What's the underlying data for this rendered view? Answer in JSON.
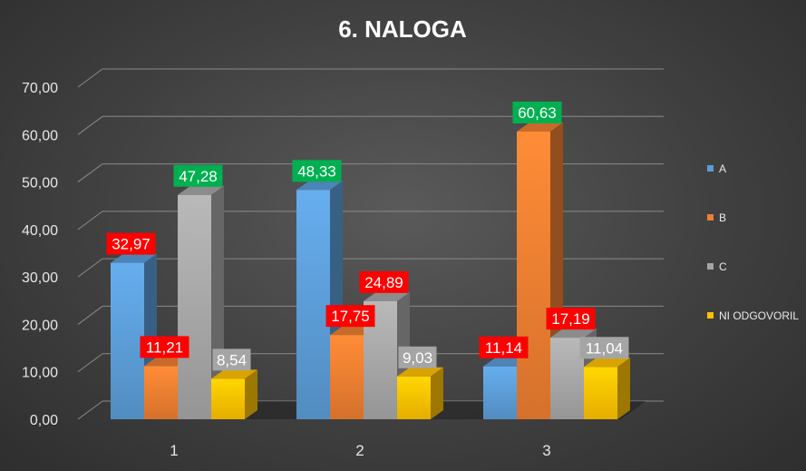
{
  "chart_data": {
    "type": "bar",
    "title": "6. NALOGA",
    "categories": [
      "1",
      "2",
      "3"
    ],
    "ylim": [
      0,
      70
    ],
    "y_ticks": [
      "0,00",
      "10,00",
      "20,00",
      "30,00",
      "40,00",
      "50,00",
      "60,00",
      "70,00"
    ],
    "grid": true,
    "legend_position": "right",
    "series": [
      {
        "name": "A",
        "color": "#5b9bd5",
        "values": [
          32.97,
          48.33,
          11.14
        ],
        "labels": [
          "32,97",
          "48,33",
          "11,14"
        ],
        "label_colors": [
          "#ff0000",
          "#00b050",
          "#ff0000"
        ]
      },
      {
        "name": "B",
        "color": "#ed7d31",
        "values": [
          11.21,
          17.75,
          60.63
        ],
        "labels": [
          "11,21",
          "17,75",
          "60,63"
        ],
        "label_colors": [
          "#ff0000",
          "#ff0000",
          "#00b050"
        ]
      },
      {
        "name": "C",
        "color": "#a5a5a5",
        "values": [
          47.28,
          24.89,
          17.19
        ],
        "labels": [
          "47,28",
          "24,89",
          "17,19"
        ],
        "label_colors": [
          "#00b050",
          "#ff0000",
          "#ff0000"
        ]
      },
      {
        "name": "NI ODGOVORIL",
        "color": "#ffc000",
        "values": [
          8.54,
          9.03,
          11.04
        ],
        "labels": [
          "8,54",
          "9,03",
          "11,04"
        ],
        "label_colors": [
          "#a5a5a5",
          "#a5a5a5",
          "#a5a5a5"
        ]
      }
    ]
  }
}
